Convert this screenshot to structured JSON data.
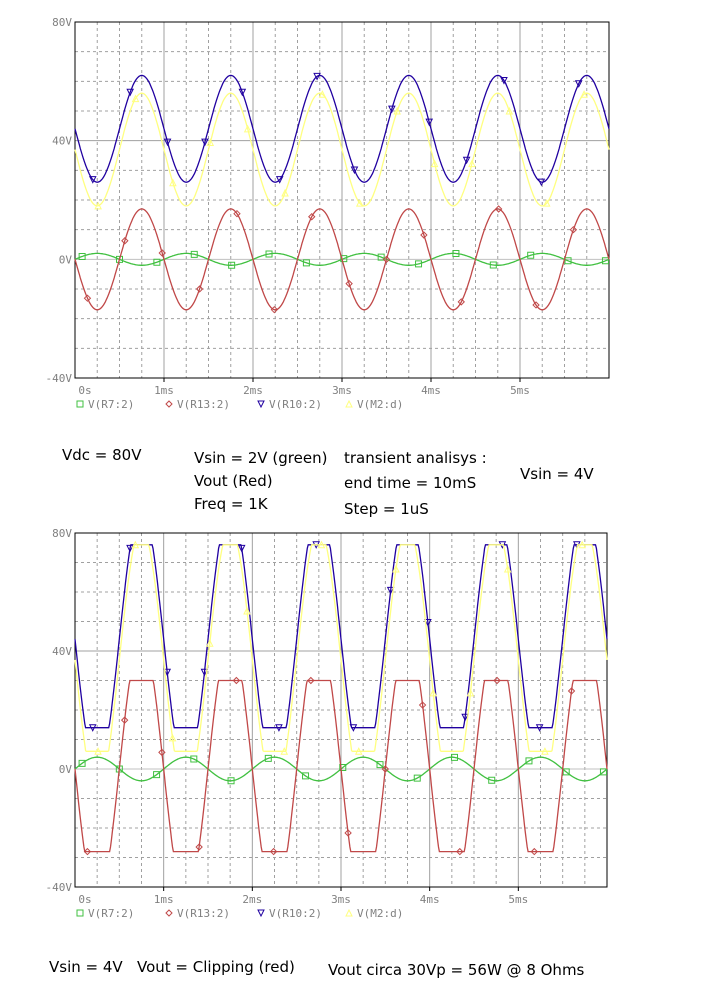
{
  "chart_data": [
    {
      "type": "line",
      "title": "",
      "xlabel": "",
      "ylabel": "",
      "xlim": [
        0,
        6
      ],
      "ylim": [
        -40,
        80
      ],
      "x_ticks": [
        "0s",
        "1ms",
        "2ms",
        "3ms",
        "4ms",
        "5ms"
      ],
      "y_ticks": [
        "-40V",
        "0V",
        "40V",
        "80V"
      ],
      "grid": true,
      "legend_position": "bottom-left",
      "series": [
        {
          "name": "V(R7:2)",
          "color": "#40c040",
          "marker": "square",
          "offset": 0,
          "amplitude": 2,
          "clip_high": null,
          "clip_low": null,
          "phase_deg": 0
        },
        {
          "name": "V(R13:2)",
          "color": "#c04848",
          "marker": "diamond",
          "offset": 0,
          "amplitude": 17,
          "clip_high": null,
          "clip_low": null,
          "phase_deg": 180
        },
        {
          "name": "V(R10:2)",
          "color": "#2000a0",
          "marker": "triangle-down",
          "offset": 44,
          "amplitude": 18,
          "clip_high": null,
          "clip_low": null,
          "phase_deg": 180
        },
        {
          "name": "V(M2:d)",
          "color": "#ffff80",
          "marker": "triangle-up",
          "offset": 37,
          "amplitude": 19,
          "clip_high": null,
          "clip_low": null,
          "phase_deg": 180
        }
      ]
    },
    {
      "type": "line",
      "title": "",
      "xlabel": "",
      "ylabel": "",
      "xlim": [
        0,
        6
      ],
      "ylim": [
        -40,
        80
      ],
      "x_ticks": [
        "0s",
        "1ms",
        "2ms",
        "3ms",
        "4ms",
        "5ms"
      ],
      "y_ticks": [
        "-40V",
        "0V",
        "40V",
        "80V"
      ],
      "grid": true,
      "legend_position": "bottom-left",
      "series": [
        {
          "name": "V(R7:2)",
          "color": "#40c040",
          "marker": "square",
          "offset": 0,
          "amplitude": 4,
          "clip_high": null,
          "clip_low": null,
          "phase_deg": 0
        },
        {
          "name": "V(R13:2)",
          "color": "#c04848",
          "marker": "diamond",
          "offset": 0,
          "amplitude": 45,
          "clip_high": 30,
          "clip_low": -28,
          "phase_deg": 180
        },
        {
          "name": "V(R10:2)",
          "color": "#2000a0",
          "marker": "triangle-down",
          "offset": 44,
          "amplitude": 45,
          "clip_high": 76,
          "clip_low": 14,
          "phase_deg": 180
        },
        {
          "name": "V(M2:d)",
          "color": "#ffff80",
          "marker": "triangle-up",
          "offset": 37,
          "amplitude": 45,
          "clip_high": 76,
          "clip_low": 6,
          "phase_deg": 180
        }
      ]
    }
  ],
  "annotations": {
    "vdc": "Vdc = 80V",
    "vsin_green": "Vsin = 2V  (green)",
    "vout_red": "Vout (Red)",
    "freq": "Freq = 1K",
    "transient": "transient analisys :",
    "end_time": "end time = 10mS",
    "step": "Step = 1uS",
    "vsin_right": "Vsin = 4V",
    "vsin_bottom": "Vsin = 4V",
    "vout_clipping": "Vout = Clipping  (red)",
    "vout_power": "Vout circa 30Vp = 56W  @  8 Ohms"
  },
  "colors": {
    "frame": "#000000",
    "grid": "#a0a0a0",
    "axis_text": "#808080",
    "zero_line": "#c0c0c0"
  }
}
